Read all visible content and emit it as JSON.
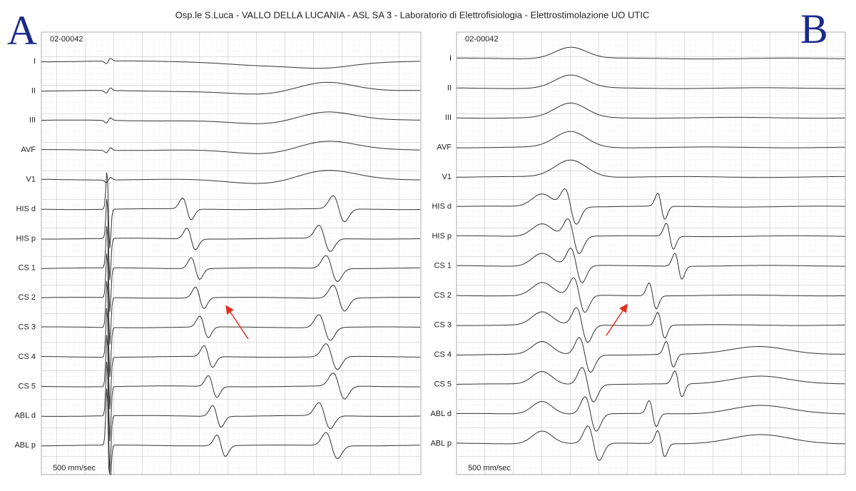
{
  "title": "Osp.le S.Luca - VALLO DELLA LUCANIA - ASL SA 3 - Laboratorio di Elettrofisiologia - Elettrostimolazione UO UTIC",
  "panels": [
    {
      "label": "A",
      "record": "02-00042",
      "speed": "500 mm/sec",
      "leads": [
        "I",
        "II",
        "III",
        "AVF",
        "V1",
        "HIS d",
        "HIS p",
        "CS 1",
        "CS 2",
        "CS 3",
        "CS 4",
        "CS 5",
        "ABL d",
        "ABL p"
      ]
    },
    {
      "label": "B",
      "record": "02-00042",
      "speed": "500 mm/sec",
      "leads": [
        "I",
        "II",
        "III",
        "AVF",
        "V1",
        "HIS d",
        "HIS p",
        "CS 1",
        "CS 2",
        "CS 3",
        "CS 4",
        "CS 5",
        "ABL d",
        "ABL p"
      ]
    }
  ]
}
